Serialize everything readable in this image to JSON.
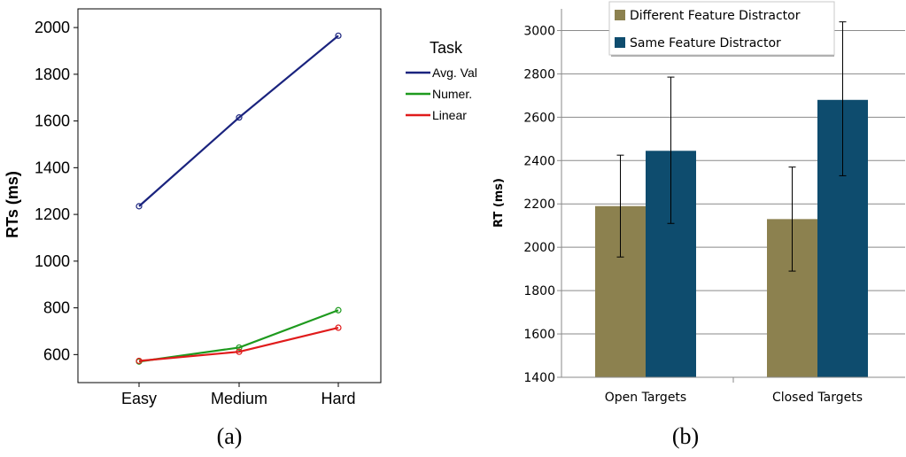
{
  "chart_data": [
    {
      "type": "line",
      "caption": "(a)",
      "ylabel": "RTs (ms)",
      "xlabel": "",
      "categories": [
        "Easy",
        "Medium",
        "Hard"
      ],
      "yticks": [
        600,
        800,
        1000,
        1200,
        1400,
        1600,
        1800,
        2000
      ],
      "ylim": [
        480,
        2080
      ],
      "legend": {
        "title": "Task",
        "placement": "right"
      },
      "series": [
        {
          "name": "Avg. Val",
          "color": "#1a237e",
          "values": [
            1235,
            1615,
            1965
          ]
        },
        {
          "name": "Numer.",
          "color": "#1e9a1e",
          "values": [
            570,
            630,
            790
          ]
        },
        {
          "name": "Linear",
          "color": "#e01b1b",
          "values": [
            573,
            612,
            715
          ]
        }
      ]
    },
    {
      "type": "bar",
      "caption": "(b)",
      "ylabel": "RT (ms)",
      "xlabel": "",
      "categories": [
        "Open Targets",
        "Closed Targets"
      ],
      "yticks": [
        1400,
        1600,
        1800,
        2000,
        2200,
        2400,
        2600,
        2800,
        3000
      ],
      "ylim": [
        1400,
        3100
      ],
      "grid": true,
      "legend": {
        "placement": "top"
      },
      "series": [
        {
          "name": "Different Feature Distractor",
          "color": "#8c814f",
          "values": [
            2190,
            2130
          ],
          "error_low": [
            1955,
            1890
          ],
          "error_high": [
            2425,
            2370
          ]
        },
        {
          "name": "Same Feature Distractor",
          "color": "#0e4c6e",
          "values": [
            2445,
            2680
          ],
          "error_low": [
            2110,
            2330
          ],
          "error_high": [
            2785,
            3040
          ]
        }
      ]
    }
  ]
}
